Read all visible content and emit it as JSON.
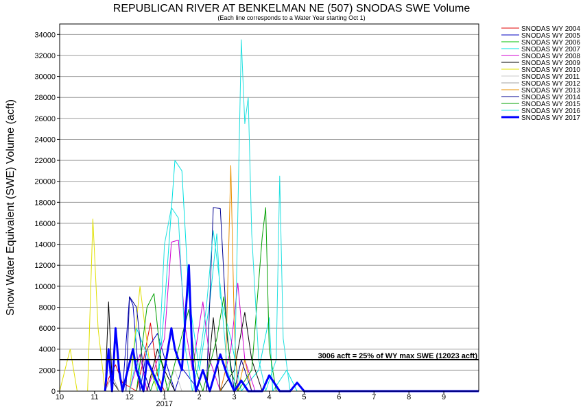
{
  "chart_data": {
    "type": "line",
    "title": "REPUBLICAN RIVER AT BENKELMAN NE (507) SNODAS SWE Volume",
    "subtitle": "(Each line corresponds to a Water Year starting Oct 1)",
    "ylabel": "Snow Water Equivalent (SWE) Volume (acft)",
    "xlabel": "",
    "x_ticks": [
      "10",
      "11",
      "12",
      "1",
      "2",
      "3",
      "4",
      "5",
      "6",
      "7",
      "8",
      "9"
    ],
    "x_year_label": "2017",
    "xlim": [
      0,
      12
    ],
    "ylim": [
      0,
      35000
    ],
    "y_ticks": [
      0,
      2000,
      4000,
      6000,
      8000,
      10000,
      12000,
      14000,
      16000,
      18000,
      20000,
      22000,
      24000,
      26000,
      28000,
      30000,
      32000,
      34000
    ],
    "grid": "horizontal",
    "legend_position": "right",
    "threshold": {
      "value": 3006,
      "label": "3006 acft = 25% of WY max SWE (12023 acft)"
    },
    "series": [
      {
        "name": "SNODAS WY 2004",
        "color": "#e00000",
        "points": [
          [
            1.3,
            0
          ],
          [
            1.4,
            1200
          ],
          [
            1.6,
            2500
          ],
          [
            1.8,
            800
          ],
          [
            2.2,
            0
          ],
          [
            2.4,
            3000
          ],
          [
            2.6,
            6500
          ],
          [
            2.8,
            1500
          ],
          [
            3.0,
            0
          ],
          [
            5.0,
            0
          ]
        ]
      },
      {
        "name": "SNODAS WY 2005",
        "color": "#0000c0",
        "points": [
          [
            1.8,
            0
          ],
          [
            2.0,
            9000
          ],
          [
            2.1,
            8200
          ],
          [
            2.3,
            0
          ],
          [
            2.5,
            4000
          ],
          [
            2.8,
            5500
          ],
          [
            3.0,
            3200
          ],
          [
            3.3,
            0
          ],
          [
            3.5,
            2200
          ],
          [
            4.0,
            0
          ],
          [
            5.0,
            0
          ]
        ]
      },
      {
        "name": "SNODAS WY 2006",
        "color": "#00c000",
        "points": [
          [
            2.6,
            0
          ],
          [
            2.9,
            3000
          ],
          [
            3.1,
            0
          ],
          [
            5.0,
            0
          ]
        ]
      },
      {
        "name": "SNODAS WY 2007",
        "color": "#00e0e0",
        "points": [
          [
            2.0,
            0
          ],
          [
            2.2,
            6000
          ],
          [
            2.5,
            3500
          ],
          [
            2.8,
            0
          ],
          [
            3.0,
            8000
          ],
          [
            3.3,
            22000
          ],
          [
            3.5,
            21000
          ],
          [
            3.7,
            9000
          ],
          [
            4.0,
            2000
          ],
          [
            4.3,
            8500
          ],
          [
            4.5,
            15000
          ],
          [
            4.6,
            9000
          ],
          [
            4.9,
            5000
          ],
          [
            5.2,
            0
          ],
          [
            5.7,
            2000
          ],
          [
            6.0,
            7000
          ],
          [
            6.1,
            0
          ],
          [
            6.5,
            2000
          ],
          [
            6.8,
            0
          ],
          [
            7.0,
            0
          ]
        ]
      },
      {
        "name": "SNODAS WY 2008",
        "color": "#d000d0",
        "points": [
          [
            2.0,
            0
          ],
          [
            2.3,
            3500
          ],
          [
            2.5,
            0
          ],
          [
            3.0,
            5000
          ],
          [
            3.2,
            14200
          ],
          [
            3.4,
            14400
          ],
          [
            3.6,
            6000
          ],
          [
            3.8,
            2000
          ],
          [
            4.1,
            8500
          ],
          [
            4.3,
            3000
          ],
          [
            4.6,
            0
          ],
          [
            4.9,
            4000
          ],
          [
            5.1,
            10300
          ],
          [
            5.3,
            3000
          ],
          [
            5.6,
            0
          ],
          [
            6.0,
            0
          ]
        ]
      },
      {
        "name": "SNODAS WY 2009",
        "color": "#000000",
        "points": [
          [
            1.3,
            0
          ],
          [
            1.4,
            8500
          ],
          [
            1.5,
            1000
          ],
          [
            1.7,
            0
          ],
          [
            2.5,
            0
          ],
          [
            2.8,
            4000
          ],
          [
            3.0,
            2000
          ],
          [
            3.3,
            0
          ],
          [
            4.2,
            0
          ],
          [
            4.4,
            7000
          ],
          [
            4.6,
            0
          ],
          [
            5.0,
            2000
          ],
          [
            5.3,
            7500
          ],
          [
            5.5,
            3000
          ],
          [
            5.8,
            0
          ],
          [
            6.0,
            0
          ]
        ]
      },
      {
        "name": "SNODAS WY 2010",
        "color": "#e0e000",
        "points": [
          [
            0.0,
            0
          ],
          [
            0.3,
            4000
          ],
          [
            0.5,
            0
          ],
          [
            0.8,
            0
          ],
          [
            0.95,
            16400
          ],
          [
            1.1,
            6000
          ],
          [
            1.3,
            0
          ],
          [
            2.0,
            0
          ],
          [
            2.3,
            10000
          ],
          [
            2.6,
            2000
          ],
          [
            2.8,
            0
          ],
          [
            5.0,
            0
          ]
        ]
      },
      {
        "name": "SNODAS WY 2011",
        "color": "#c8c8c8",
        "points": [
          [
            3.0,
            0
          ],
          [
            3.3,
            2000
          ],
          [
            3.5,
            0
          ],
          [
            5.0,
            0
          ]
        ]
      },
      {
        "name": "SNODAS WY 2012",
        "color": "#a0a0a0",
        "points": [
          [
            1.3,
            0
          ],
          [
            1.5,
            1500
          ],
          [
            1.7,
            0
          ],
          [
            5.0,
            0
          ]
        ]
      },
      {
        "name": "SNODAS WY 2013",
        "color": "#e89000",
        "points": [
          [
            4.6,
            0
          ],
          [
            4.75,
            2000
          ],
          [
            4.9,
            21500
          ],
          [
            5.0,
            6000
          ],
          [
            5.1,
            0
          ],
          [
            5.3,
            3000
          ],
          [
            5.5,
            0
          ],
          [
            6.0,
            0
          ]
        ]
      },
      {
        "name": "SNODAS WY 2014",
        "color": "#000090",
        "points": [
          [
            1.9,
            0
          ],
          [
            2.0,
            9000
          ],
          [
            2.2,
            8000
          ],
          [
            2.4,
            2000
          ],
          [
            2.6,
            0
          ],
          [
            4.2,
            0
          ],
          [
            4.4,
            17500
          ],
          [
            4.6,
            17400
          ],
          [
            4.8,
            5000
          ],
          [
            5.0,
            0
          ],
          [
            5.2,
            3000
          ],
          [
            5.5,
            0
          ],
          [
            6.0,
            0
          ]
        ]
      },
      {
        "name": "SNODAS WY 2015",
        "color": "#00a000",
        "points": [
          [
            2.2,
            0
          ],
          [
            2.5,
            8000
          ],
          [
            2.7,
            9300
          ],
          [
            2.9,
            3000
          ],
          [
            3.1,
            0
          ],
          [
            3.4,
            4000
          ],
          [
            3.7,
            7800
          ],
          [
            3.9,
            2000
          ],
          [
            4.1,
            0
          ],
          [
            4.5,
            5000
          ],
          [
            4.7,
            9000
          ],
          [
            4.9,
            2000
          ],
          [
            5.1,
            0
          ],
          [
            5.5,
            2000
          ],
          [
            5.8,
            14700
          ],
          [
            5.9,
            17500
          ],
          [
            6.0,
            4000
          ],
          [
            6.2,
            0
          ],
          [
            7.0,
            0
          ]
        ]
      },
      {
        "name": "SNODAS WY 2016",
        "color": "#20e0e0",
        "points": [
          [
            2.0,
            0
          ],
          [
            2.2,
            3000
          ],
          [
            2.4,
            0
          ],
          [
            2.8,
            0
          ],
          [
            3.0,
            14000
          ],
          [
            3.2,
            17500
          ],
          [
            3.4,
            16500
          ],
          [
            3.6,
            4000
          ],
          [
            3.8,
            0
          ],
          [
            4.0,
            3000
          ],
          [
            4.2,
            8000
          ],
          [
            4.4,
            15300
          ],
          [
            4.6,
            10000
          ],
          [
            4.8,
            2000
          ],
          [
            5.0,
            0
          ],
          [
            5.2,
            33500
          ],
          [
            5.3,
            25500
          ],
          [
            5.4,
            28000
          ],
          [
            5.5,
            15000
          ],
          [
            5.7,
            3000
          ],
          [
            5.9,
            0
          ],
          [
            6.2,
            3000
          ],
          [
            6.3,
            20500
          ],
          [
            6.4,
            5000
          ],
          [
            6.6,
            0
          ],
          [
            7.0,
            0
          ]
        ]
      },
      {
        "name": "SNODAS WY 2017",
        "color": "#0000ff",
        "bold": true,
        "points": [
          [
            1.3,
            0
          ],
          [
            1.4,
            4000
          ],
          [
            1.5,
            0
          ],
          [
            1.6,
            6000
          ],
          [
            1.7,
            2000
          ],
          [
            1.8,
            0
          ],
          [
            2.1,
            4000
          ],
          [
            2.2,
            2000
          ],
          [
            2.4,
            0
          ],
          [
            2.5,
            3000
          ],
          [
            2.7,
            1500
          ],
          [
            2.9,
            0
          ],
          [
            3.2,
            6000
          ],
          [
            3.3,
            4000
          ],
          [
            3.5,
            2000
          ],
          [
            3.7,
            12000
          ],
          [
            3.8,
            3000
          ],
          [
            3.9,
            0
          ],
          [
            4.1,
            2000
          ],
          [
            4.3,
            0
          ],
          [
            4.6,
            3500
          ],
          [
            4.8,
            1500
          ],
          [
            5.0,
            0
          ],
          [
            5.2,
            1000
          ],
          [
            5.4,
            0
          ],
          [
            5.8,
            0
          ],
          [
            6.0,
            1500
          ],
          [
            6.3,
            0
          ],
          [
            6.6,
            0
          ],
          [
            6.8,
            800
          ],
          [
            7.0,
            0
          ],
          [
            12.0,
            0
          ]
        ]
      }
    ]
  }
}
